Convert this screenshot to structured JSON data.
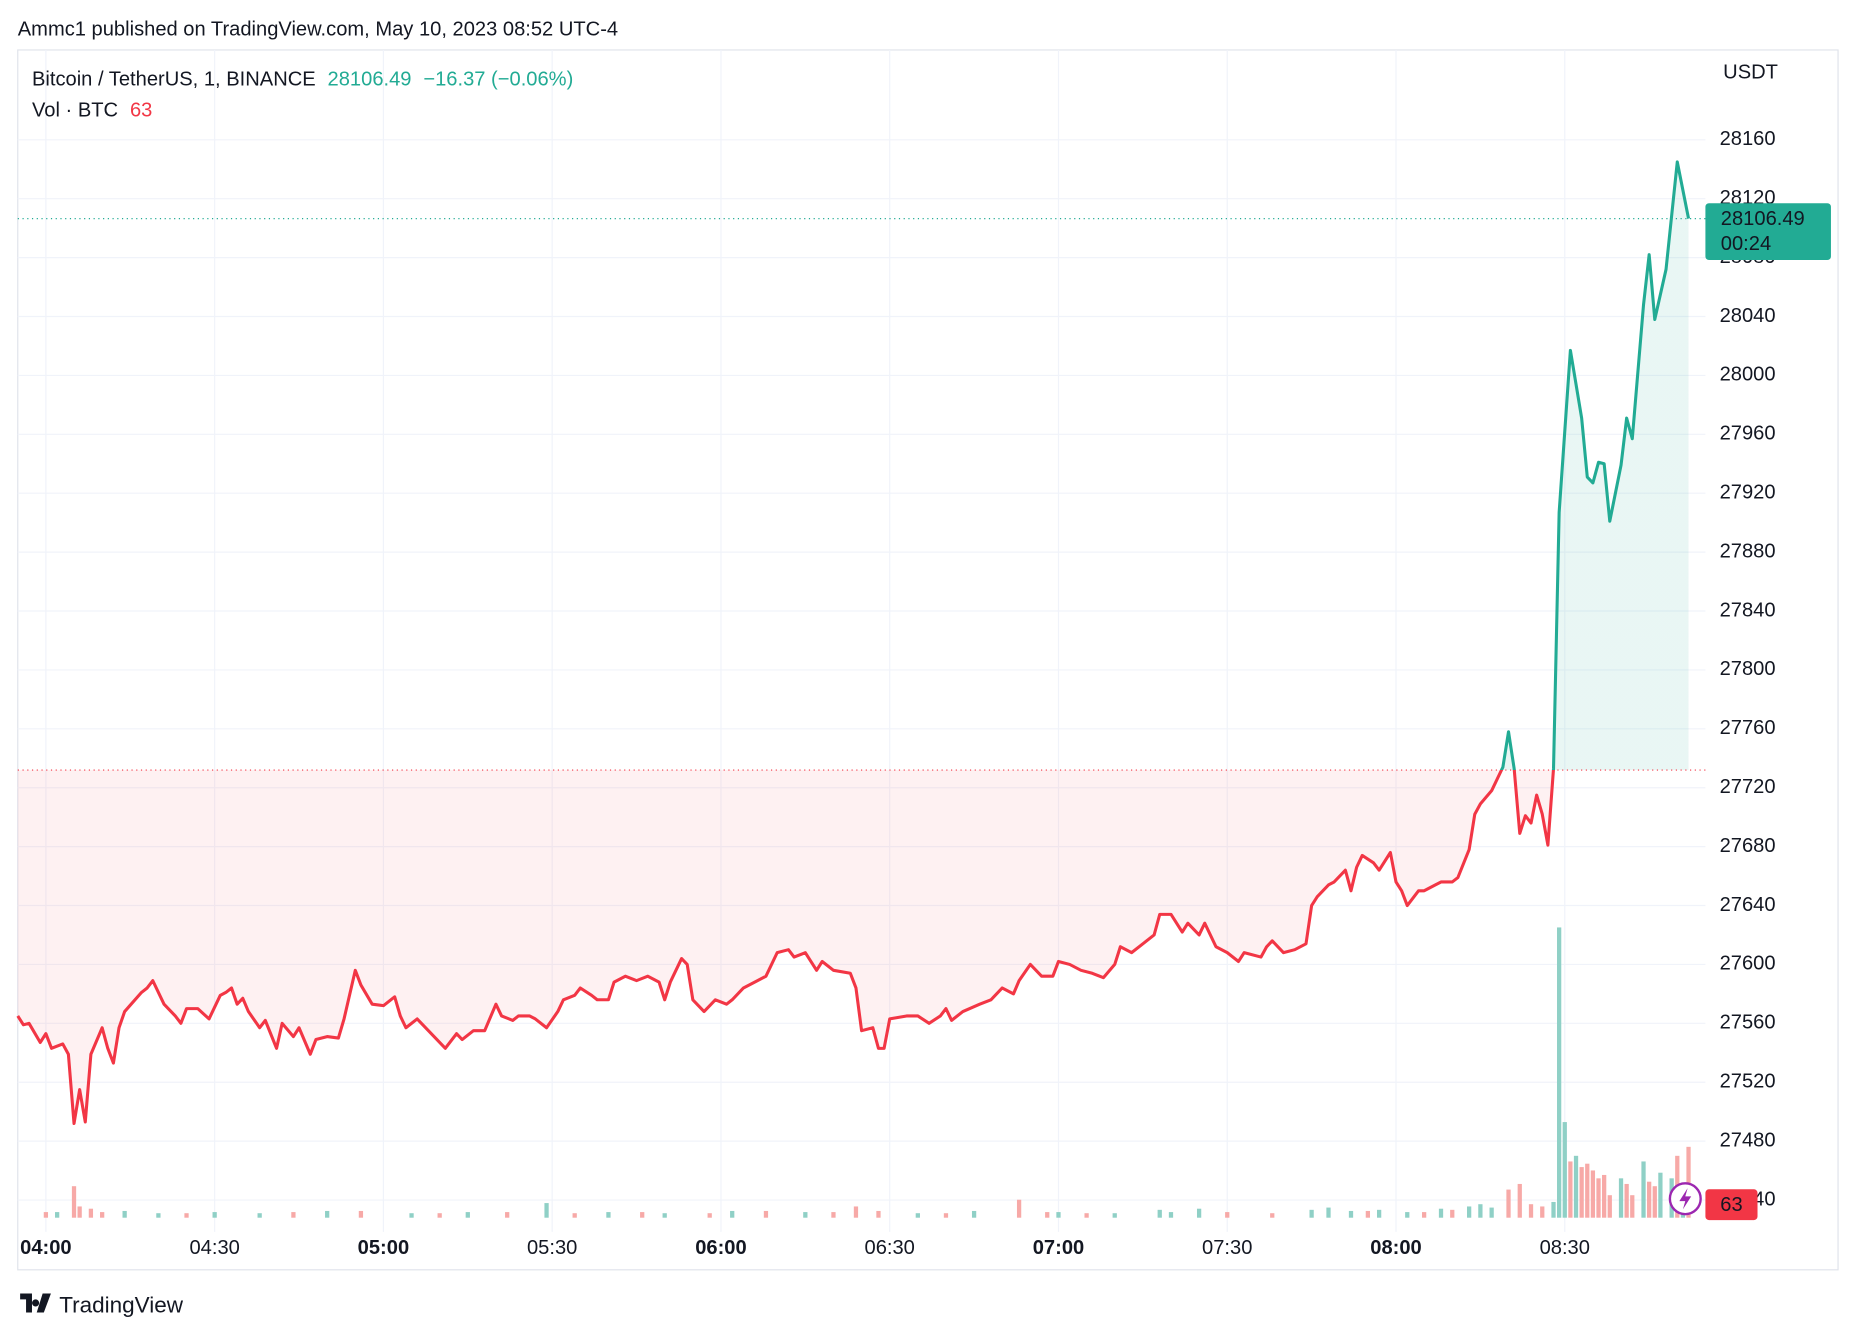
{
  "attribution": "Ammc1 published on TradingView.com, May 10, 2023 08:52 UTC-4",
  "footer": "TradingView",
  "chart_data": {
    "type": "baseline",
    "symbol": "Bitcoin / TetherUS, 1, BINANCE",
    "change": "−16.37 (−0.06%)",
    "volume_label": "Vol · BTC",
    "currency": "USDT",
    "countdown": "00:24",
    "baseline": 27732,
    "up_color": "#22ab94",
    "down_color": "#f23645",
    "grid": true,
    "xlim": [
      "03:55",
      "08:55"
    ],
    "xticks": [
      "04:00",
      "04:30",
      "05:00",
      "05:30",
      "06:00",
      "06:30",
      "07:00",
      "07:30",
      "08:00",
      "08:30"
    ],
    "ylim": [
      27428,
      28221
    ],
    "yticks": [
      27440,
      27480,
      27520,
      27560,
      27600,
      27640,
      27680,
      27720,
      27760,
      27800,
      27840,
      27880,
      27920,
      27960,
      28000,
      28040,
      28080,
      28120,
      28160
    ],
    "x": [
      "03:55",
      "03:56",
      "03:57",
      "03:59",
      "04:00",
      "04:01",
      "04:03",
      "04:04",
      "04:05",
      "04:06",
      "04:07",
      "04:08",
      "04:10",
      "04:11",
      "04:12",
      "04:13",
      "04:14",
      "04:17",
      "04:18",
      "04:19",
      "04:21",
      "04:23",
      "04:24",
      "04:25",
      "04:27",
      "04:29",
      "04:31",
      "04:32",
      "04:33",
      "04:34",
      "04:35",
      "04:36",
      "04:38",
      "04:39",
      "04:41",
      "04:42",
      "04:44",
      "04:45",
      "04:47",
      "04:48",
      "04:50",
      "04:52",
      "04:53",
      "04:55",
      "04:56",
      "04:58",
      "05:00",
      "05:02",
      "05:03",
      "05:04",
      "05:06",
      "05:08",
      "05:11",
      "05:13",
      "05:14",
      "05:16",
      "05:18",
      "05:20",
      "05:21",
      "05:23",
      "05:24",
      "05:26",
      "05:27",
      "05:29",
      "05:31",
      "05:32",
      "05:34",
      "05:35",
      "05:37",
      "05:38",
      "05:40",
      "05:41",
      "05:43",
      "05:45",
      "05:47",
      "05:49",
      "05:50",
      "05:51",
      "05:53",
      "05:54",
      "05:55",
      "05:57",
      "05:59",
      "06:01",
      "06:02",
      "06:04",
      "06:06",
      "06:08",
      "06:10",
      "06:12",
      "06:13",
      "06:15",
      "06:17",
      "06:18",
      "06:20",
      "06:23",
      "06:24",
      "06:25",
      "06:27",
      "06:28",
      "06:29",
      "06:30",
      "06:33",
      "06:35",
      "06:37",
      "06:39",
      "06:40",
      "06:41",
      "06:43",
      "06:46",
      "06:48",
      "06:50",
      "06:52",
      "06:53",
      "06:55",
      "06:57",
      "06:59",
      "07:00",
      "07:02",
      "07:04",
      "07:06",
      "07:08",
      "07:10",
      "07:11",
      "07:13",
      "07:15",
      "07:17",
      "07:18",
      "07:20",
      "07:22",
      "07:23",
      "07:25",
      "07:26",
      "07:28",
      "07:30",
      "07:32",
      "07:33",
      "07:36",
      "07:37",
      "07:38",
      "07:40",
      "07:42",
      "07:44",
      "07:45",
      "07:46",
      "07:48",
      "07:49",
      "07:51",
      "07:52",
      "07:53",
      "07:54",
      "07:56",
      "07:57",
      "07:59",
      "08:00",
      "08:01",
      "08:02",
      "08:04",
      "08:05",
      "08:07",
      "08:08",
      "08:10",
      "08:11",
      "08:13",
      "08:14",
      "08:15",
      "08:17",
      "08:19",
      "08:20",
      "08:21",
      "08:22",
      "08:23",
      "08:24",
      "08:25",
      "08:26",
      "08:27",
      "08:28",
      "08:29",
      "08:31",
      "08:33",
      "08:34",
      "08:35",
      "08:36",
      "08:37",
      "08:38",
      "08:40",
      "08:41",
      "08:42",
      "08:44",
      "08:45",
      "08:46",
      "08:48",
      "08:50",
      "08:52"
    ],
    "values": [
      27565,
      27559,
      27560,
      27547,
      27553,
      27543,
      27546,
      27539,
      27492,
      27515,
      27493,
      27539,
      27557,
      27543,
      27533,
      27557,
      27568,
      27581,
      27584,
      27589,
      27573,
      27565,
      27560,
      27570,
      27570,
      27563,
      27579,
      27581,
      27584,
      27573,
      27577,
      27568,
      27557,
      27562,
      27543,
      27560,
      27551,
      27557,
      27539,
      27549,
      27551,
      27550,
      27563,
      27596,
      27586,
      27573,
      27572,
      27578,
      27565,
      27557,
      27563,
      27555,
      27543,
      27553,
      27549,
      27555,
      27555,
      27573,
      27565,
      27562,
      27565,
      27565,
      27563,
      27557,
      27568,
      27576,
      27579,
      27584,
      27579,
      27576,
      27576,
      27588,
      27592,
      27589,
      27592,
      27588,
      27576,
      27588,
      27604,
      27600,
      27576,
      27568,
      27576,
      27573,
      27576,
      27584,
      27588,
      27592,
      27608,
      27610,
      27605,
      27608,
      27596,
      27602,
      27596,
      27594,
      27584,
      27555,
      27557,
      27543,
      27543,
      27563,
      27565,
      27565,
      27560,
      27565,
      27570,
      27562,
      27568,
      27573,
      27576,
      27584,
      27580,
      27589,
      27600,
      27592,
      27592,
      27602,
      27600,
      27596,
      27594,
      27591,
      27600,
      27612,
      27608,
      27614,
      27620,
      27634,
      27634,
      27622,
      27628,
      27620,
      27628,
      27612,
      27608,
      27602,
      27608,
      27605,
      27612,
      27616,
      27608,
      27610,
      27614,
      27640,
      27646,
      27654,
      27656,
      27664,
      27650,
      27666,
      27674,
      27669,
      27664,
      27676,
      27656,
      27650,
      27640,
      27650,
      27650,
      27654,
      27656,
      27656,
      27659,
      27678,
      27702,
      27709,
      27718,
      27734,
      27758,
      27733,
      27689,
      27701,
      27696,
      27715,
      27702,
      27681,
      27733,
      27907,
      28017,
      27971,
      27931,
      27927,
      27941,
      27940,
      27901,
      27939,
      27971,
      27957,
      28048,
      28082,
      28038,
      28072,
      28145,
      28106.49
    ],
    "volume": {
      "series": [
        {
          "color": "#8fd0c6",
          "x": [
            "04:02",
            "04:14",
            "04:20",
            "04:30",
            "04:38",
            "04:50",
            "05:05",
            "05:15",
            "05:29",
            "05:40",
            "05:50",
            "06:02",
            "06:15",
            "06:35",
            "06:45",
            "07:00",
            "07:10",
            "07:18",
            "07:20",
            "07:25",
            "07:45",
            "07:48",
            "07:52",
            "07:57",
            "08:02",
            "08:08",
            "08:13",
            "08:15",
            "08:17",
            "08:28",
            "08:29",
            "08:30",
            "08:32",
            "08:40",
            "08:44",
            "08:47",
            "08:49",
            "08:51"
          ],
          "values": [
            5,
            6,
            4,
            5,
            4,
            6,
            4,
            5,
            13,
            5,
            4,
            6,
            5,
            4,
            6,
            5,
            4,
            7,
            5,
            8,
            7,
            9,
            6,
            7,
            5,
            8,
            10,
            12,
            9,
            14,
            258,
            85,
            55,
            35,
            50,
            40,
            35,
            20
          ]
        },
        {
          "color": "#f7a9a7",
          "x": [
            "04:00",
            "04:05",
            "04:06",
            "04:08",
            "04:10",
            "04:25",
            "04:44",
            "04:56",
            "05:10",
            "05:22",
            "05:34",
            "05:46",
            "05:58",
            "06:08",
            "06:20",
            "06:24",
            "06:28",
            "06:40",
            "06:53",
            "06:58",
            "07:05",
            "07:30",
            "07:38",
            "07:55",
            "08:05",
            "08:10",
            "08:20",
            "08:22",
            "08:24",
            "08:26",
            "08:31",
            "08:33",
            "08:34",
            "08:35",
            "08:36",
            "08:37",
            "08:38",
            "08:41",
            "08:42",
            "08:45",
            "08:46",
            "08:50",
            "08:52"
          ],
          "values": [
            5,
            28,
            10,
            8,
            5,
            4,
            5,
            6,
            4,
            5,
            4,
            5,
            4,
            6,
            5,
            10,
            6,
            4,
            16,
            5,
            4,
            5,
            4,
            6,
            5,
            7,
            25,
            30,
            12,
            10,
            50,
            45,
            48,
            42,
            35,
            38,
            20,
            30,
            20,
            32,
            28,
            55,
            63
          ]
        }
      ]
    }
  }
}
